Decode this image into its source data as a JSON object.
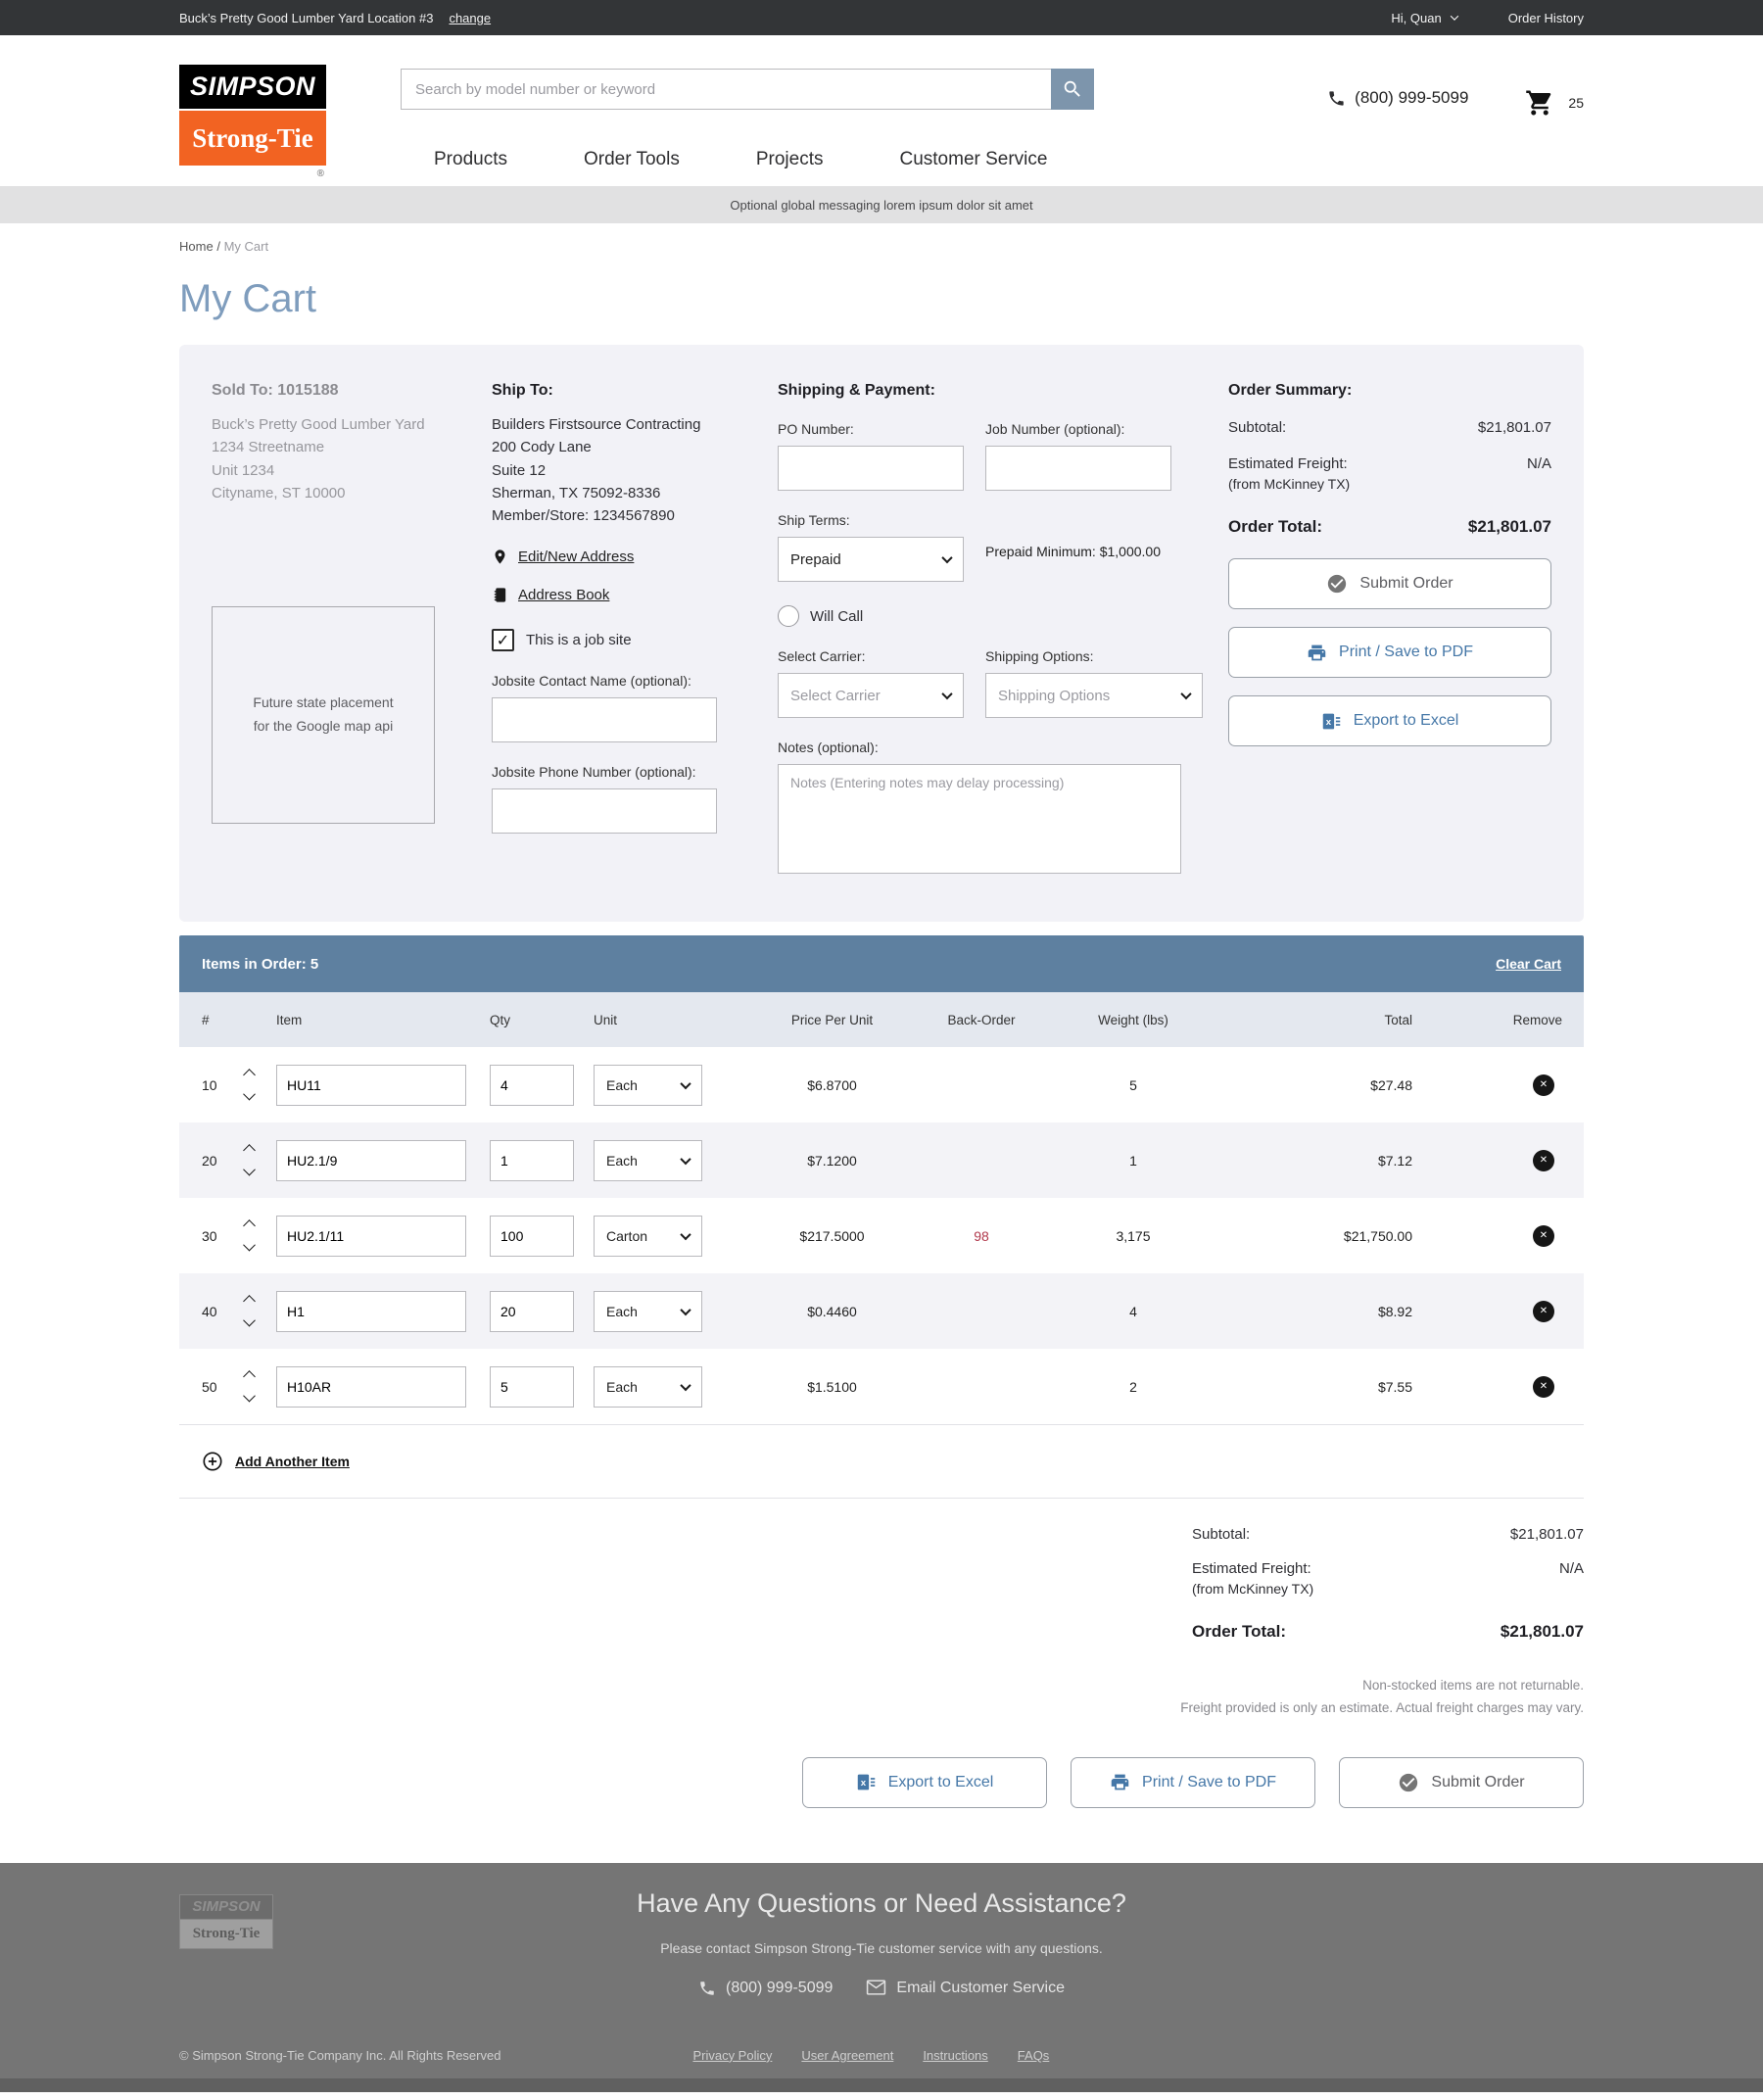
{
  "topbar": {
    "location": "Buck’s Pretty Good Lumber Yard Location #3",
    "change_link": "change",
    "greeting": "Hi, Quan",
    "order_history": "Order History"
  },
  "header": {
    "logo_top": "SIMPSON",
    "logo_bottom": "Strong-Tie",
    "logo_reg": "®",
    "search_placeholder": "Search by model number or keyword",
    "phone": "(800) 999-5099",
    "cart_count": "25",
    "nav": [
      {
        "label": "Products"
      },
      {
        "label": "Order Tools"
      },
      {
        "label": "Projects"
      },
      {
        "label": "Customer Service"
      }
    ]
  },
  "global_message": "Optional global messaging lorem ipsum dolor sit amet",
  "breadcrumb": {
    "home": "Home",
    "separator": "/",
    "current": "My Cart"
  },
  "page_title": "My Cart",
  "cart_info": {
    "sold_to": {
      "heading": "Sold To: 1015188",
      "line1": "Buck’s Pretty Good Lumber Yard",
      "line2": "1234 Streetname",
      "line3": "Unit 1234",
      "line4": "Cityname, ST 10000"
    },
    "map_placeholder_line1": "Future state placement",
    "map_placeholder_line2": "for the Google map api",
    "ship_to": {
      "heading": "Ship To:",
      "line1": "Builders Firstsource Contracting",
      "line2": "200 Cody Lane",
      "line3": "Suite 12",
      "line4": "Sherman, TX 75092-8336",
      "line5": "Member/Store: 1234567890",
      "edit_address_link": "Edit/New Address",
      "address_book_link": "Address Book",
      "jobsite_checkbox_label": "This is a job site",
      "jobsite_check_glyph": "✓",
      "jobsite_contact_label": "Jobsite Contact Name (optional):",
      "jobsite_phone_label": "Jobsite Phone Number (optional):"
    },
    "shipping_payment": {
      "heading": "Shipping & Payment:",
      "po_label": "PO Number:",
      "job_label": "Job Number (optional):",
      "ship_terms_label": "Ship Terms:",
      "ship_terms_value": "Prepaid",
      "prepaid_minimum": "Prepaid Minimum: $1,000.00",
      "will_call_label": "Will Call",
      "carrier_label": "Select Carrier:",
      "carrier_placeholder": "Select Carrier",
      "options_label": "Shipping Options:",
      "options_placeholder": "Shipping Options",
      "notes_label": "Notes (optional):",
      "notes_placeholder": "Notes (Entering notes may delay processing)"
    },
    "summary": {
      "heading": "Order Summary:",
      "subtotal_label": "Subtotal:",
      "subtotal_value": "$21,801.07",
      "freight_label": "Estimated Freight:",
      "freight_origin": "(from McKinney TX)",
      "freight_value": "N/A",
      "total_label": "Order Total:",
      "total_value": "$21,801.07",
      "submit_label": "Submit Order",
      "print_label": "Print / Save to PDF",
      "export_label": "Export to Excel"
    }
  },
  "items": {
    "bar_label": "Items in Order: 5",
    "clear_cart_label": "Clear Cart",
    "columns": {
      "num": "#",
      "item": "Item",
      "qty": "Qty",
      "unit": "Unit",
      "price": "Price Per Unit",
      "backorder": "Back-Order",
      "weight": "Weight (lbs)",
      "total": "Total",
      "remove": "Remove"
    },
    "rows": [
      {
        "num": "10",
        "item": "HU11",
        "qty": "4",
        "unit": "Each",
        "price": "$6.8700",
        "backorder": "",
        "weight": "5",
        "total": "$27.48"
      },
      {
        "num": "20",
        "item": "HU2.1/9",
        "qty": "1",
        "unit": "Each",
        "price": "$7.1200",
        "backorder": "",
        "weight": "1",
        "total": "$7.12"
      },
      {
        "num": "30",
        "item": "HU2.1/11",
        "qty": "100",
        "unit": "Carton",
        "price": "$217.5000",
        "backorder": "98",
        "weight": "3,175",
        "total": "$21,750.00"
      },
      {
        "num": "40",
        "item": "H1",
        "qty": "20",
        "unit": "Each",
        "price": "$0.4460",
        "backorder": "",
        "weight": "4",
        "total": "$8.92"
      },
      {
        "num": "50",
        "item": "H10AR",
        "qty": "5",
        "unit": "Each",
        "price": "$1.5100",
        "backorder": "",
        "weight": "2",
        "total": "$7.55"
      }
    ],
    "add_item_label": "Add Another Item",
    "remove_glyph": "✕"
  },
  "totals": {
    "subtotal_label": "Subtotal:",
    "subtotal_value": "$21,801.07",
    "freight_label": "Estimated Freight:",
    "freight_origin": "(from McKinney TX)",
    "freight_value": "N/A",
    "total_label": "Order Total:",
    "total_value": "$21,801.07"
  },
  "disclaimers": {
    "line1": "Non-stocked items are not returnable.",
    "line2": "Freight provided is only an estimate. Actual freight charges may vary."
  },
  "bottom_actions": {
    "export_label": "Export to Excel",
    "print_label": "Print / Save to PDF",
    "submit_label": "Submit Order"
  },
  "footer": {
    "logo_top": "SIMPSON",
    "logo_bottom": "Strong-Tie",
    "heading": "Have Any Questions or Need Assistance?",
    "subheading": "Please contact Simpson Strong-Tie customer service with any questions.",
    "phone": "(800) 999-5099",
    "email_label": "Email Customer Service",
    "copyright": "© Simpson Strong-Tie Company Inc. All Rights Reserved",
    "links": [
      {
        "label": "Privacy Policy"
      },
      {
        "label": "User Agreement"
      },
      {
        "label": "Instructions"
      },
      {
        "label": "FAQs"
      }
    ]
  },
  "colors": {
    "brand_orange": "#f26322",
    "steel_blue": "#5e80a0",
    "link_blue": "#4577a7",
    "backorder_red": "#b13a4d",
    "title_blue": "#7f9dbd",
    "topbar_gray": "#333537",
    "footer_gray": "#757575"
  }
}
